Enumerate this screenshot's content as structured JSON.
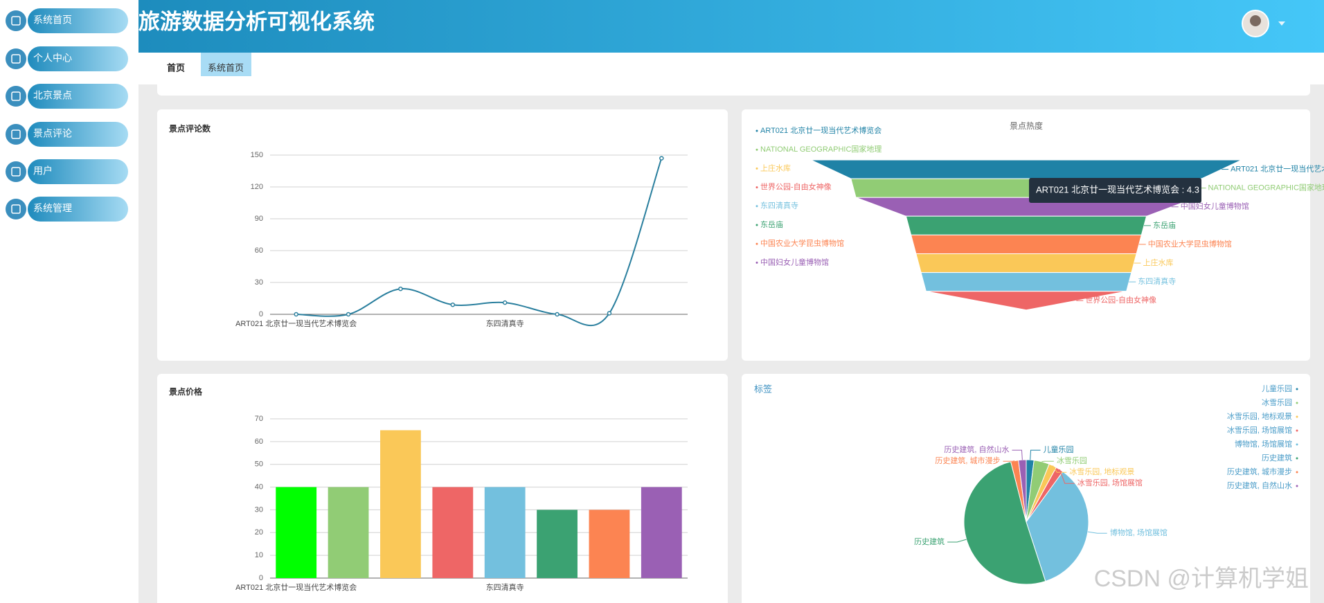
{
  "sidebar": {
    "items": [
      "系统首页",
      "个人中心",
      "北京景点",
      "景点评论",
      "用户",
      "系统管理"
    ]
  },
  "header": {
    "title": "旅游数据分析可视化系统"
  },
  "tabs": [
    "首页",
    "系统首页"
  ],
  "chart_data": [
    {
      "type": "line",
      "title": "景点评论数",
      "categories": [
        "ART021 北京廿一现当代艺术博览会",
        null,
        null,
        null,
        "东四清真寺",
        null,
        null,
        null
      ],
      "values": [
        0,
        0,
        24,
        9,
        11,
        0,
        1,
        147
      ],
      "color": "#2a7f9e",
      "ylim": [
        0,
        150
      ],
      "yticks": [
        0,
        30,
        60,
        90,
        120,
        150
      ],
      "grid": true
    },
    {
      "type": "funnel",
      "title": "景点热度",
      "categories": [
        "ART021 北京廿一现当代艺术博览会",
        "NATIONAL GEOGRAPHIC国家地理",
        "上庄水库",
        "世界公园-自由女神像",
        "东四清真寺",
        "东岳庙",
        "中国农业大学昆虫博物馆",
        "中国妇女儿童博物馆"
      ],
      "values": [
        4.3,
        3.5,
        2.2,
        2.0,
        2.1,
        2.4,
        2.3,
        3.4
      ],
      "colors": [
        "#1f82a6",
        "#91cc75",
        "#fac858",
        "#ee6666",
        "#73c0de",
        "#3ba272",
        "#fc8452",
        "#9a60b4"
      ],
      "tooltip": "ART021 北京廿一现当代艺术博览会 : 4.3"
    },
    {
      "type": "bar",
      "title": "景点价格",
      "categories": [
        "ART021 北京廿一现当代艺术博览会",
        null,
        null,
        null,
        "东四清真寺",
        null,
        null,
        null
      ],
      "values": [
        40,
        40,
        65,
        40,
        40,
        30,
        30,
        40
      ],
      "colors": [
        "#00ff00",
        "#91cc75",
        "#fac858",
        "#ee6666",
        "#73c0de",
        "#3ba272",
        "#fc8452",
        "#9a60b4"
      ],
      "ylim": [
        0,
        70
      ],
      "yticks": [
        0,
        10,
        20,
        30,
        40,
        50,
        60,
        70
      ],
      "grid": true
    },
    {
      "type": "pie",
      "title": "标签",
      "categories": [
        "儿童乐园",
        "冰雪乐园",
        "冰雪乐园, 地标观景",
        "冰雪乐园, 场馆展馆",
        "博物馆, 场馆展馆",
        "历史建筑",
        "历史建筑, 城市漫步",
        "历史建筑, 自然山水"
      ],
      "values": [
        2,
        4,
        2,
        2,
        35,
        51,
        2,
        2
      ],
      "colors": [
        "#1f82a6",
        "#91cc75",
        "#fac858",
        "#ee6666",
        "#73c0de",
        "#3ba272",
        "#fc8452",
        "#9a60b4"
      ]
    }
  ],
  "watermark": "CSDN @计算机学姐"
}
